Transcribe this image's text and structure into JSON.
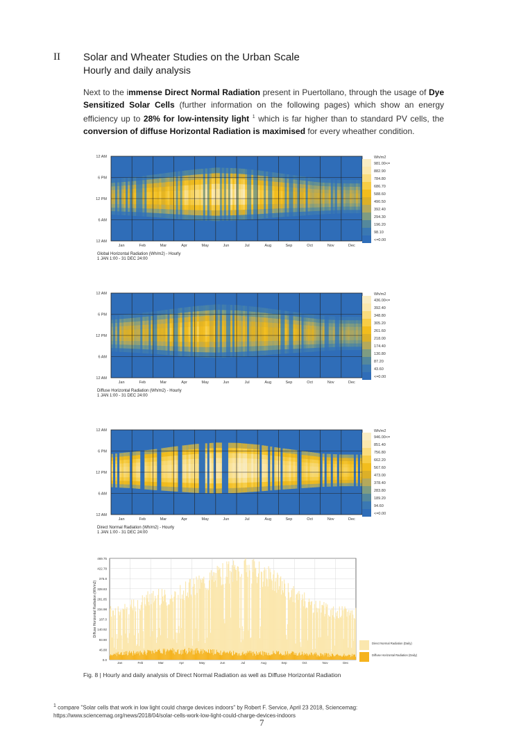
{
  "header": {
    "section_number": "II",
    "title": "Solar and Wheater Studies on the Urban Scale",
    "subtitle": "Hourly and daily analysis"
  },
  "intro": {
    "p1": "Next to the i",
    "b1": "mmense Direct Normal Radiation",
    "p2": " present in Puertollano, through the usage of ",
    "b2": "Dye Sensitized Solar Cells",
    "p3": " (further information on the following pages) which show an energy efficiency up to ",
    "b3": "28% for low-intensity light",
    "fn": "1",
    "p4": " which is far higher than to standard PV cells, the ",
    "b4": "conversion of diffuse Horizontal Radiation is maximised",
    "p5": " for every wheather condition."
  },
  "colors": {
    "low": "#2f6db8",
    "high": "#f9edc4",
    "diffuse_bar": "#f5b31e",
    "direct_bar": "#fbe7ae"
  },
  "chart_data": [
    {
      "type": "heatmap",
      "title": "Global Horizontal Radiation (Wh/m2) - Hourly",
      "subtitle": "1 JAN 1:00 - 31 DEC 24:00",
      "x_tick_labels": [
        "Jan",
        "Feb",
        "Mar",
        "Apr",
        "May",
        "Jun",
        "Jul",
        "Aug",
        "Sep",
        "Oct",
        "Nov",
        "Dec"
      ],
      "y_tick_labels": [
        "12 AM",
        "6 PM",
        "12 PM",
        "6 AM",
        "12 AM"
      ],
      "legend_unit": "Wh/m2",
      "legend_labels": [
        "981.00<=",
        "882.90",
        "784.80",
        "686.70",
        "588.60",
        "490.50",
        "392.40",
        "294.30",
        "196.20",
        "98.10",
        "<=0.00"
      ],
      "daylight_start_hour": [
        7.5,
        7.2,
        6.8,
        6.3,
        5.9,
        5.7,
        5.9,
        6.3,
        6.8,
        7.2,
        7.6,
        7.9
      ],
      "daylight_end_hour": [
        17.5,
        18.1,
        18.8,
        19.6,
        20.3,
        20.8,
        20.6,
        20.0,
        19.2,
        18.4,
        17.6,
        17.3
      ],
      "peak_value": [
        520,
        600,
        720,
        820,
        880,
        930,
        960,
        890,
        760,
        620,
        530,
        480
      ]
    },
    {
      "type": "heatmap",
      "title": "Diffuse Horizontal Radiation (Wh/m2) - Hourly",
      "subtitle": "1 JAN 1:00 - 31 DEC 24:00",
      "x_tick_labels": [
        "Jan",
        "Feb",
        "Mar",
        "Apr",
        "May",
        "Jun",
        "Jul",
        "Aug",
        "Sep",
        "Oct",
        "Nov",
        "Dec"
      ],
      "y_tick_labels": [
        "12 AM",
        "6 PM",
        "12 PM",
        "6 AM",
        "12 AM"
      ],
      "legend_unit": "Wh/m2",
      "legend_labels": [
        "436.00<=",
        "392.40",
        "348.80",
        "305.20",
        "261.60",
        "218.00",
        "174.40",
        "130.80",
        "87.20",
        "43.60",
        "<=0.00"
      ],
      "daylight_start_hour": [
        7.5,
        7.2,
        6.8,
        6.3,
        5.9,
        5.7,
        5.9,
        6.3,
        6.8,
        7.2,
        7.6,
        7.9
      ],
      "daylight_end_hour": [
        17.5,
        18.1,
        18.8,
        19.6,
        20.3,
        20.8,
        20.6,
        20.0,
        19.2,
        18.4,
        17.6,
        17.3
      ],
      "peak_value": [
        210,
        250,
        290,
        320,
        330,
        300,
        260,
        270,
        280,
        250,
        220,
        200
      ]
    },
    {
      "type": "heatmap",
      "title": "Direct Normal Radiation (Wh/m2) - Hourly",
      "subtitle": "1 JAN 1:00 - 31 DEC 24:00",
      "x_tick_labels": [
        "Jan",
        "Feb",
        "Mar",
        "Apr",
        "May",
        "Jun",
        "Jul",
        "Aug",
        "Sep",
        "Oct",
        "Nov",
        "Dec"
      ],
      "y_tick_labels": [
        "12 AM",
        "6 PM",
        "12 PM",
        "6 AM",
        "12 AM"
      ],
      "legend_unit": "Wh/m2",
      "legend_labels": [
        "946.00<=",
        "851.40",
        "756.80",
        "662.20",
        "567.60",
        "473.00",
        "378.40",
        "283.80",
        "189.20",
        "94.60",
        "<=0.00"
      ],
      "daylight_start_hour": [
        7.8,
        7.5,
        7.0,
        6.6,
        6.2,
        6.0,
        6.2,
        6.6,
        7.1,
        7.5,
        7.9,
        8.1
      ],
      "daylight_end_hour": [
        17.2,
        17.8,
        18.5,
        19.3,
        20.0,
        20.4,
        20.3,
        19.8,
        18.9,
        18.1,
        17.3,
        17.0
      ],
      "peak_value": [
        760,
        800,
        820,
        840,
        880,
        920,
        940,
        900,
        840,
        800,
        760,
        720
      ]
    },
    {
      "type": "bar",
      "title": "",
      "ylabel": "Diffuse Horizontal Radiation (Wh/m2)",
      "x_tick_labels": [
        "Jan",
        "Feb",
        "Mar",
        "Apr",
        "May",
        "Jun",
        "Jul",
        "Aug",
        "Sep",
        "Oct",
        "Nov",
        "Dec"
      ],
      "y_tick_labels": [
        "0.0",
        "46.88",
        "93.90",
        "140.92",
        "187.0",
        "234.98",
        "281.85",
        "328.83",
        "375.8",
        "422.78",
        "469.75"
      ],
      "ylim": [
        0,
        469.75
      ],
      "legend": [
        "Direct Normal Radiation (Daily)",
        "Diffuse Horizontal Radiation (Daily)"
      ],
      "series": [
        {
          "name": "Direct Normal Radiation (Daily)",
          "values": [
            260,
            280,
            330,
            330,
            380,
            430,
            470,
            470,
            420,
            340,
            280,
            250
          ]
        },
        {
          "name": "Diffuse Horizontal Radiation (Daily)",
          "values": [
            25,
            30,
            35,
            40,
            40,
            35,
            30,
            30,
            30,
            30,
            25,
            20
          ]
        }
      ]
    }
  ],
  "caption": "Fig. 8 | Hourly and daily analysis of Direct Normal Radiation as well as Diffuse Horizontal Radiation",
  "footnote": {
    "number": "1",
    "text": "compare \"Solar cells that work in low light could charge devices indoors\" by Robert F. Service, April 23 2018, Sciencemag: https://www.sciencemag.org/news/2018/04/solar-cells-work-low-light-could-charge-devices-indoors"
  },
  "page_number": "7"
}
